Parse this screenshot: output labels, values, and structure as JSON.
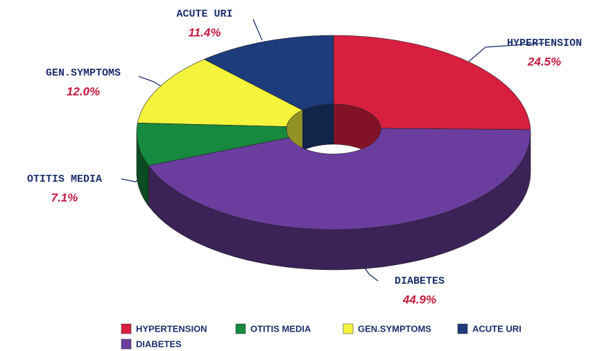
{
  "chart_data": {
    "type": "donut3d",
    "categories": [
      "HYPERTENSION",
      "OTITIS MEDIA",
      "GEN.SYMPTOMS",
      "ACUTE URI",
      "DIABETES"
    ],
    "values": [
      24.5,
      7.1,
      12.0,
      11.4,
      44.9
    ],
    "value_labels": [
      "24.5%",
      "7.1%",
      "12.0%",
      "11.4%",
      "44.9%"
    ],
    "colors": [
      "#d81f3f",
      "#168a3e",
      "#f4f43c",
      "#1d3c7c",
      "#6b3d9e"
    ],
    "legend": "bottom"
  }
}
